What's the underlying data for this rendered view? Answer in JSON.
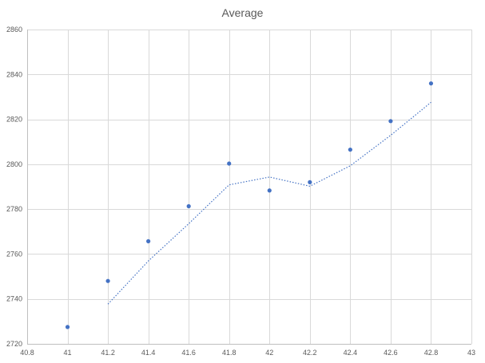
{
  "chart_data": {
    "type": "scatter",
    "title": "Average",
    "xlabel": "",
    "ylabel": "",
    "xlim": [
      40.8,
      43
    ],
    "ylim": [
      2720,
      2860
    ],
    "x_ticks": [
      40.8,
      41,
      41.2,
      41.4,
      41.6,
      41.8,
      42,
      42.2,
      42.4,
      42.6,
      42.8,
      43
    ],
    "y_ticks": [
      2720,
      2740,
      2760,
      2780,
      2800,
      2820,
      2840,
      2860
    ],
    "grid": true,
    "legend": "none",
    "series": [
      {
        "color": "#4472c4",
        "marker": "circle",
        "x": [
          41,
          41.2,
          41.4,
          41.6,
          41.8,
          42,
          42.2,
          42.4,
          42.6,
          42.8
        ],
        "values": [
          2727.5,
          2748,
          2765.7,
          2781.3,
          2800.3,
          2788.3,
          2792,
          2806.5,
          2819.2,
          2836
        ]
      }
    ],
    "trendline": {
      "type": "moving-average",
      "period": 2,
      "style": "dotted",
      "color": "#4472c4",
      "x": [
        41.2,
        41.4,
        41.6,
        41.8,
        42,
        42.2,
        42.4,
        42.6,
        42.8
      ],
      "values": [
        2737.7,
        2756.9,
        2773.5,
        2790.8,
        2794.3,
        2790.2,
        2799.3,
        2812.9,
        2827.6
      ]
    }
  }
}
